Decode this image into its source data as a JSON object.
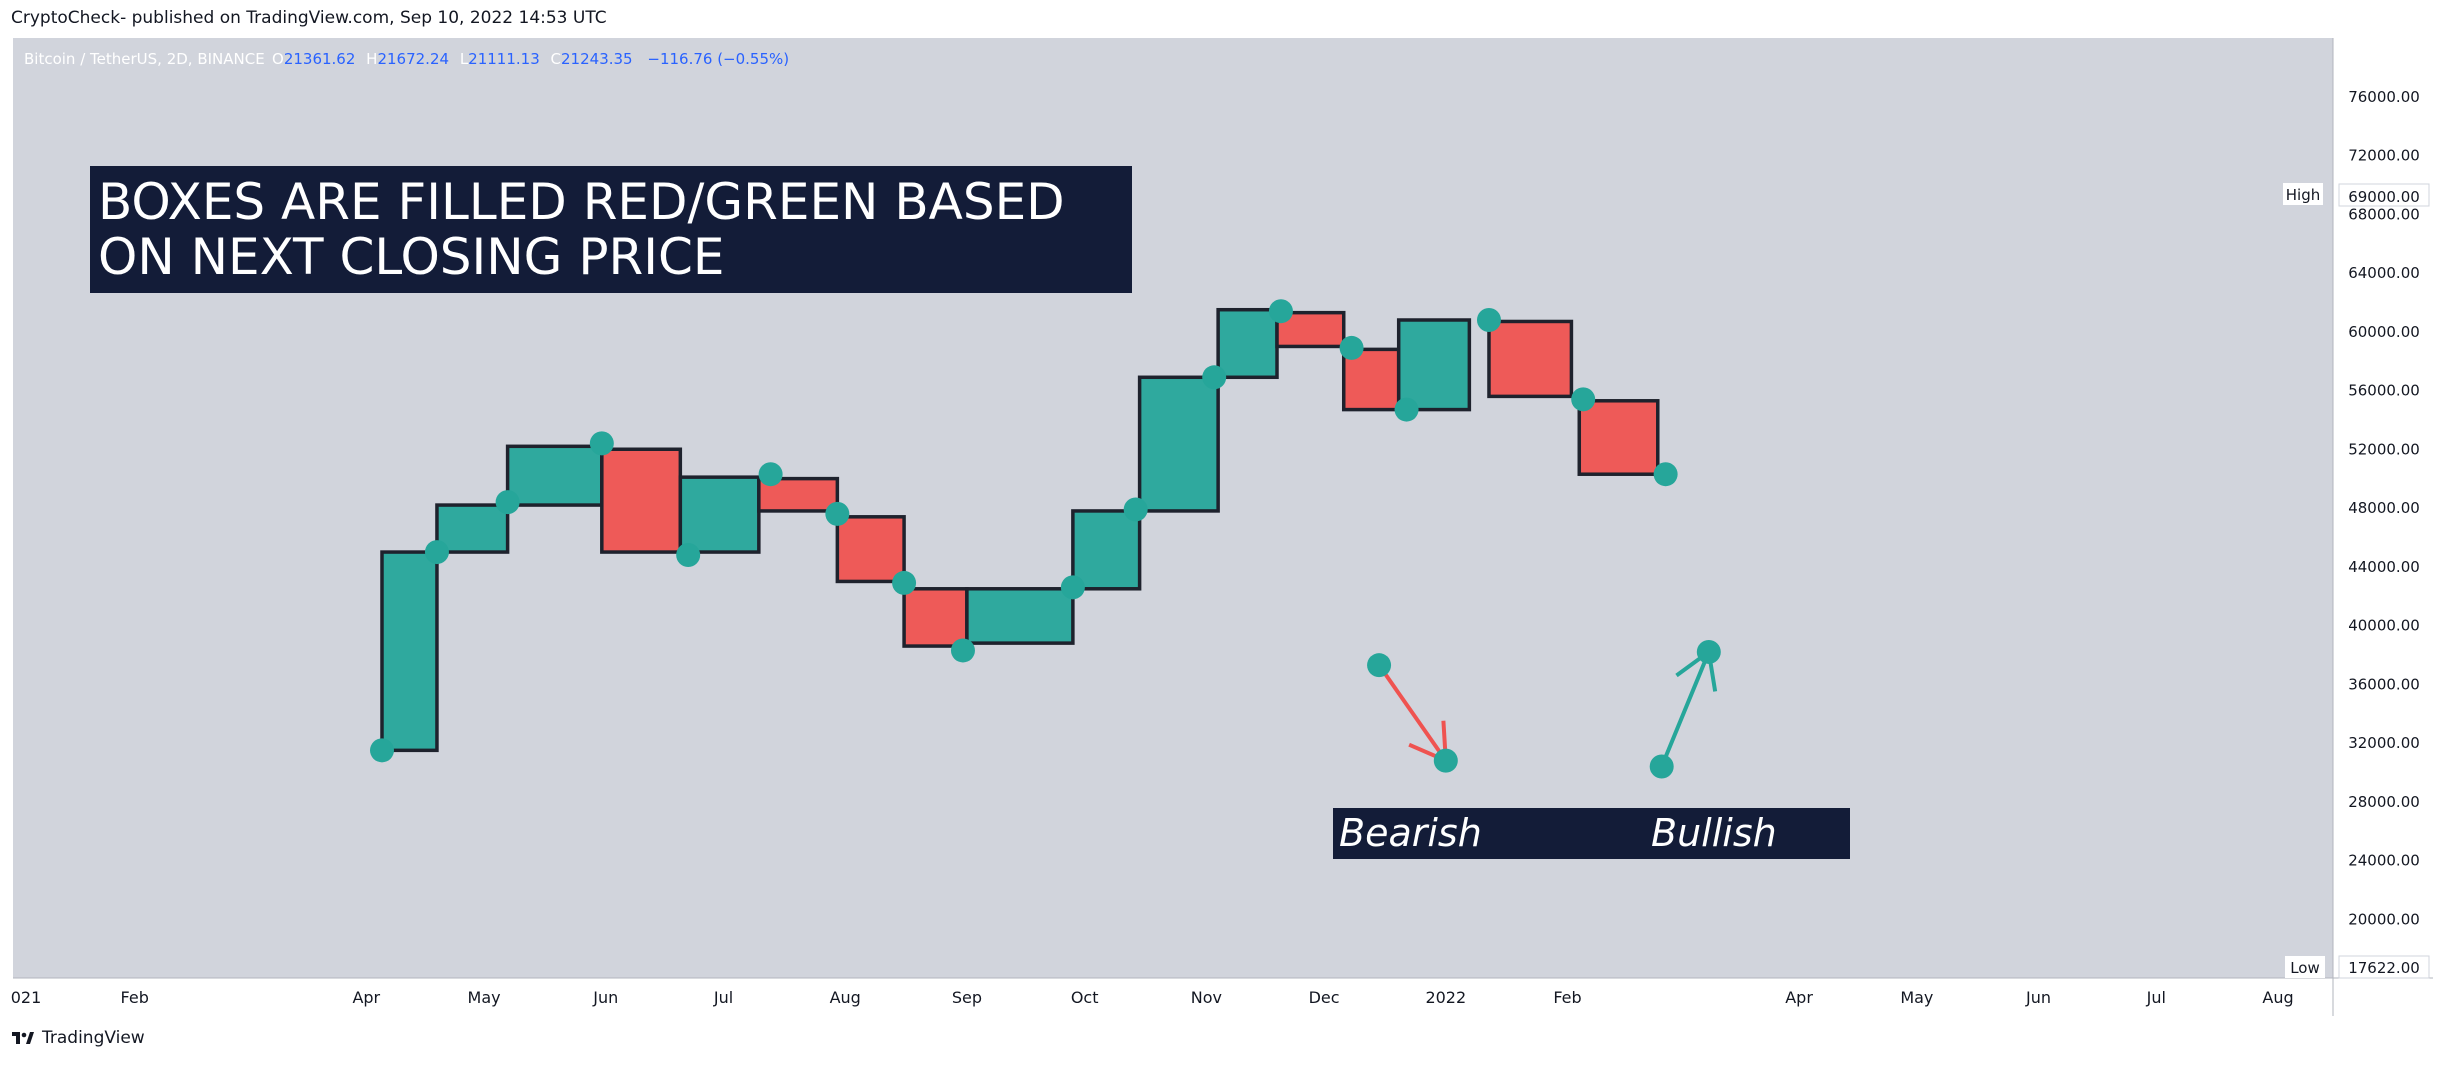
{
  "header": {
    "publisher_line": "CryptoCheck- published on TradingView.com, Sep 10, 2022 14:53 UTC"
  },
  "footer": {
    "logo_icon": "tradingview-logo-icon",
    "brand": "TradingView"
  },
  "legend": {
    "symbol": "Bitcoin / TetherUS, 2D, BINANCE",
    "o_label": "O",
    "open": "21361.62",
    "h_label": "H",
    "high": "21672.24",
    "l_label": "L",
    "low": "21111.13",
    "c_label": "C",
    "close": "21243.35",
    "change": "−116.76 (−0.55%)"
  },
  "price_scale": {
    "high_label": "High",
    "high_value": "69000.00",
    "low_label": "Low",
    "low_value": "17622.00"
  },
  "annotations": {
    "headline_line1": "BOXES ARE FILLED RED/GREEN BASED",
    "headline_line2": "ON NEXT CLOSING PRICE",
    "bearish": "Bearish",
    "bullish": "Bullish"
  },
  "colors": {
    "background": "#d1d4dc",
    "bull": "#26a69a",
    "bear": "#ef5350",
    "label_box": "#131c38",
    "outline": "#1e222d",
    "text_blue": "#2962ff",
    "axis_text": "#131722"
  },
  "chart_data": {
    "type": "step-boxes",
    "ylim": [
      16000,
      80000
    ],
    "y_ticks": [
      20000,
      24000,
      28000,
      32000,
      36000,
      40000,
      44000,
      48000,
      52000,
      56000,
      60000,
      64000,
      68000,
      72000,
      76000
    ],
    "x_ticks": [
      {
        "label": "021",
        "date": "2021-01-01"
      },
      {
        "label": "Feb",
        "date": "2021-02-01"
      },
      {
        "label": "Apr",
        "date": "2021-04-01"
      },
      {
        "label": "May",
        "date": "2021-05-01"
      },
      {
        "label": "Jun",
        "date": "2021-06-01"
      },
      {
        "label": "Jul",
        "date": "2021-07-01"
      },
      {
        "label": "Aug",
        "date": "2021-08-01"
      },
      {
        "label": "Sep",
        "date": "2021-09-01"
      },
      {
        "label": "Oct",
        "date": "2021-10-01"
      },
      {
        "label": "Nov",
        "date": "2021-11-01"
      },
      {
        "label": "Dec",
        "date": "2021-12-01"
      },
      {
        "label": "2022",
        "date": "2022-01-01"
      },
      {
        "label": "Feb",
        "date": "2022-02-01"
      },
      {
        "label": "Apr",
        "date": "2022-04-01"
      },
      {
        "label": "May",
        "date": "2022-05-01"
      },
      {
        "label": "Jun",
        "date": "2022-06-01"
      },
      {
        "label": "Jul",
        "date": "2022-07-01"
      },
      {
        "label": "Aug",
        "date": "2022-08-01"
      }
    ],
    "boxes": [
      {
        "start": "2021-04-05",
        "end": "2021-04-19",
        "from": 31500,
        "to": 45000,
        "dir": "up"
      },
      {
        "start": "2021-04-19",
        "end": "2021-05-07",
        "from": 45000,
        "to": 48200,
        "dir": "up"
      },
      {
        "start": "2021-05-07",
        "end": "2021-05-31",
        "from": 48200,
        "to": 52200,
        "dir": "up"
      },
      {
        "start": "2021-05-31",
        "end": "2021-06-20",
        "from": 52000,
        "to": 45000,
        "dir": "down"
      },
      {
        "start": "2021-06-20",
        "end": "2021-07-10",
        "from": 45000,
        "to": 50100,
        "dir": "up"
      },
      {
        "start": "2021-07-10",
        "end": "2021-07-30",
        "from": 50000,
        "to": 47800,
        "dir": "down"
      },
      {
        "start": "2021-07-30",
        "end": "2021-08-16",
        "from": 47400,
        "to": 43000,
        "dir": "down"
      },
      {
        "start": "2021-08-16",
        "end": "2021-09-01",
        "from": 42500,
        "to": 38600,
        "dir": "down"
      },
      {
        "start": "2021-09-01",
        "end": "2021-09-28",
        "from": 38800,
        "to": 42500,
        "dir": "up"
      },
      {
        "start": "2021-09-28",
        "end": "2021-10-15",
        "from": 42500,
        "to": 47800,
        "dir": "up"
      },
      {
        "start": "2021-10-15",
        "end": "2021-11-04",
        "from": 47800,
        "to": 56900,
        "dir": "up"
      },
      {
        "start": "2021-11-04",
        "end": "2021-11-19",
        "from": 56900,
        "to": 61500,
        "dir": "up"
      },
      {
        "start": "2021-11-19",
        "end": "2021-12-06",
        "from": 61300,
        "to": 59000,
        "dir": "down"
      },
      {
        "start": "2021-12-06",
        "end": "2021-12-20",
        "from": 58800,
        "to": 54700,
        "dir": "down"
      },
      {
        "start": "2021-12-20",
        "end": "2022-01-07",
        "from": 54700,
        "to": 60800,
        "dir": "up"
      },
      {
        "start": "2022-01-12",
        "end": "2022-02-02",
        "from": 60700,
        "to": 55600,
        "dir": "down"
      },
      {
        "start": "2022-02-04",
        "end": "2022-02-24",
        "from": 55300,
        "to": 50300,
        "dir": "down"
      }
    ],
    "close_points": [
      {
        "date": "2021-04-05",
        "value": 31500
      },
      {
        "date": "2021-04-19",
        "value": 45000
      },
      {
        "date": "2021-05-07",
        "value": 48400
      },
      {
        "date": "2021-05-31",
        "value": 52400
      },
      {
        "date": "2021-06-22",
        "value": 44800
      },
      {
        "date": "2021-07-13",
        "value": 50300
      },
      {
        "date": "2021-07-30",
        "value": 47600
      },
      {
        "date": "2021-08-16",
        "value": 42900
      },
      {
        "date": "2021-08-31",
        "value": 38300
      },
      {
        "date": "2021-09-28",
        "value": 42600
      },
      {
        "date": "2021-10-14",
        "value": 47900
      },
      {
        "date": "2021-11-03",
        "value": 56900
      },
      {
        "date": "2021-11-20",
        "value": 61400
      },
      {
        "date": "2021-12-08",
        "value": 58900
      },
      {
        "date": "2021-12-22",
        "value": 54700
      },
      {
        "date": "2022-01-12",
        "value": 60800
      },
      {
        "date": "2022-02-05",
        "value": 55400
      },
      {
        "date": "2022-02-26",
        "value": 50300
      }
    ],
    "example_bearish": {
      "from": {
        "date": "2021-12-15",
        "value": 37300
      },
      "to": {
        "date": "2022-01-01",
        "value": 30800
      }
    },
    "example_bullish": {
      "from": {
        "date": "2022-02-25",
        "value": 30400
      },
      "to": {
        "date": "2022-03-09",
        "value": 38200
      }
    }
  }
}
